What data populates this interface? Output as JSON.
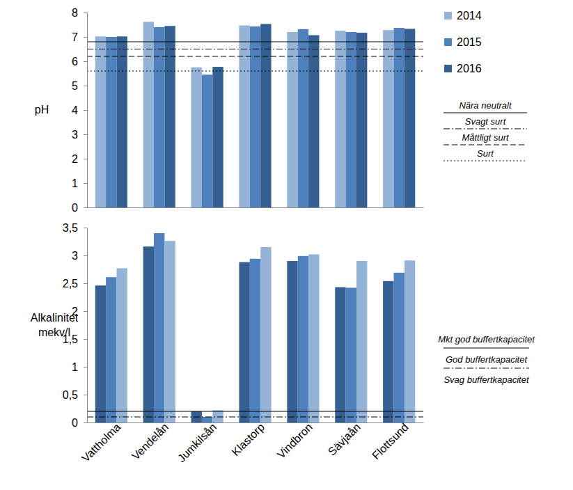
{
  "chart_data": [
    {
      "type": "bar",
      "y_label": [
        "pH"
      ],
      "categories": [
        "Vattholma",
        "Vendelån",
        "Jumkilsån",
        "Klastorp",
        "Vindbron",
        "Sävjaån",
        "Flottsund"
      ],
      "tick_labels": "y",
      "legend": "right",
      "ylim": [
        0,
        8
      ],
      "yticks": [
        0,
        1,
        2,
        3,
        4,
        5,
        6,
        7,
        8
      ],
      "series": [
        {
          "name": "2014",
          "color": "#95b3d7",
          "values": [
            7.02,
            7.62,
            5.75,
            7.47,
            7.2,
            7.25,
            7.28
          ]
        },
        {
          "name": "2015",
          "color": "#4f81bd",
          "values": [
            7.0,
            7.4,
            5.45,
            7.43,
            7.32,
            7.2,
            7.37
          ]
        },
        {
          "name": "2016",
          "color": "#366092",
          "values": [
            7.02,
            7.45,
            5.77,
            7.53,
            7.07,
            7.17,
            7.33
          ]
        }
      ],
      "thresholds": [
        {
          "value": 6.8,
          "line_style": "solid"
        },
        {
          "value": 6.5,
          "line_style": "dashdot"
        },
        {
          "value": 6.2,
          "line_style": "dashed"
        },
        {
          "value": 5.6,
          "line_style": "dotted"
        }
      ],
      "threshold_labels": [
        "Nära neutralt",
        "Svagt surt",
        "Måttligt surt",
        "Surt"
      ]
    },
    {
      "type": "bar",
      "y_label": [
        "Alkalinitet",
        "mekv/l"
      ],
      "categories": [
        "Vattholma",
        "Vendelån",
        "Jumkilsån",
        "Klastorp",
        "Vindbron",
        "Sävjaån",
        "Flottsund"
      ],
      "ylim": [
        0,
        3.5
      ],
      "yticks": [
        0,
        {
          "value": 0.5,
          "label": "0,5"
        },
        1,
        {
          "value": 1.5,
          "label": "1,5"
        },
        2,
        {
          "value": 2.5,
          "label": "2,5"
        },
        3,
        {
          "value": 3.5,
          "label": "3,5"
        }
      ],
      "series": [
        {
          "color": "#366092",
          "values": [
            2.46,
            3.16,
            0.2,
            2.88,
            2.9,
            2.43,
            2.54
          ]
        },
        {
          "color": "#4f81bd",
          "values": [
            2.61,
            3.4,
            0.1,
            2.94,
            2.99,
            2.42,
            2.69
          ]
        },
        {
          "color": "#95b3d7",
          "values": [
            2.77,
            3.26,
            0.22,
            3.15,
            3.02,
            2.9,
            2.91
          ]
        }
      ],
      "thresholds": [
        {
          "value": 0.2,
          "line_style": "solid"
        },
        {
          "value": 0.1,
          "line_style": "dashdot"
        }
      ],
      "threshold_labels": [
        "Mkt god buffertkapacitet",
        "God buffertkapacitet",
        "Svag buffertkapacitet"
      ]
    }
  ]
}
